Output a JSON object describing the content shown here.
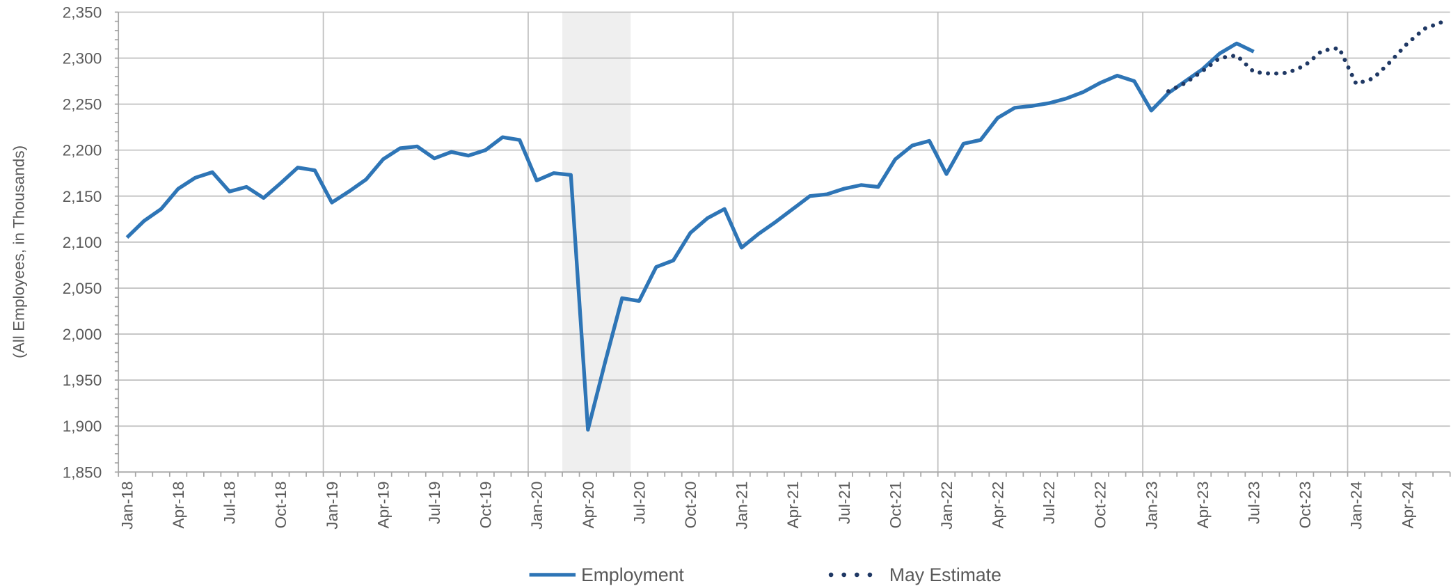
{
  "chart_data": {
    "type": "line",
    "y_axis_label": "(All Employees, in Thousands)",
    "categories": [
      "Jan-18",
      null,
      null,
      "Apr-18",
      null,
      null,
      "Jul-18",
      null,
      null,
      "Oct-18",
      null,
      null,
      "Jan-19",
      null,
      null,
      "Apr-19",
      null,
      null,
      "Jul-19",
      null,
      null,
      "Oct-19",
      null,
      null,
      "Jan-20",
      null,
      null,
      "Apr-20",
      null,
      null,
      "Jul-20",
      null,
      null,
      "Oct-20",
      null,
      null,
      "Jan-21",
      null,
      null,
      "Apr-21",
      null,
      null,
      "Jul-21",
      null,
      null,
      "Oct-21",
      null,
      null,
      "Jan-22",
      null,
      null,
      "Apr-22",
      null,
      null,
      "Jul-22",
      null,
      null,
      "Oct-22",
      null,
      null,
      "Jan-23",
      null,
      null,
      "Apr-23",
      null,
      null,
      "Jul-23",
      null,
      null,
      "Oct-23",
      null,
      null,
      "Jan-24",
      null,
      null,
      "Apr-24",
      null,
      null
    ],
    "series": [
      {
        "name": "Employment",
        "color": "#2e75b6",
        "style": "solid",
        "values": [
          2105,
          2123,
          2136,
          2158,
          2170,
          2176,
          2155,
          2160,
          2148,
          2164,
          2181,
          2178,
          2143,
          2155,
          2168,
          2190,
          2202,
          2204,
          2191,
          2198,
          2194,
          2200,
          2214,
          2211,
          2167,
          2175,
          2173,
          1896,
          1969,
          2039,
          2036,
          2073,
          2080,
          2110,
          2126,
          2136,
          2094,
          2109,
          2122,
          2136,
          2150,
          2152,
          2158,
          2162,
          2160,
          2190,
          2205,
          2210,
          2174,
          2207,
          2211,
          2235,
          2246,
          2248,
          2251,
          2256,
          2263,
          2273,
          2281,
          2275,
          2243,
          2262,
          2275,
          2288,
          2305,
          2316,
          2307,
          null,
          null,
          null,
          null,
          null,
          null,
          null,
          null,
          null,
          null,
          null
        ]
      },
      {
        "name": "May Estimate",
        "color": "#1f3864",
        "style": "dotted",
        "values": [
          null,
          null,
          null,
          null,
          null,
          null,
          null,
          null,
          null,
          null,
          null,
          null,
          null,
          null,
          null,
          null,
          null,
          null,
          null,
          null,
          null,
          null,
          null,
          null,
          null,
          null,
          null,
          null,
          null,
          null,
          null,
          null,
          null,
          null,
          null,
          null,
          null,
          null,
          null,
          null,
          null,
          null,
          null,
          null,
          null,
          null,
          null,
          null,
          null,
          null,
          null,
          null,
          null,
          null,
          null,
          null,
          null,
          null,
          null,
          null,
          null,
          2264,
          2273,
          2286,
          2300,
          2303,
          2285,
          2283,
          2284,
          2292,
          2308,
          2311,
          2272,
          2278,
          2296,
          2316,
          2332,
          2339
        ]
      }
    ],
    "ylim": [
      1850,
      2350
    ],
    "yticks": [
      {
        "value": 1850,
        "label": "1,850"
      },
      {
        "value": 1900,
        "label": "1,900"
      },
      {
        "value": 1950,
        "label": "1,950"
      },
      {
        "value": 2000,
        "label": "2,000"
      },
      {
        "value": 2050,
        "label": "2,050"
      },
      {
        "value": 2100,
        "label": "2,100"
      },
      {
        "value": 2150,
        "label": "2,150"
      },
      {
        "value": 2200,
        "label": "2,200"
      },
      {
        "value": 2250,
        "label": "2,250"
      },
      {
        "value": 2300,
        "label": "2,300"
      },
      {
        "value": 2350,
        "label": "2,350"
      }
    ],
    "grid": true,
    "legend": "bottom"
  }
}
